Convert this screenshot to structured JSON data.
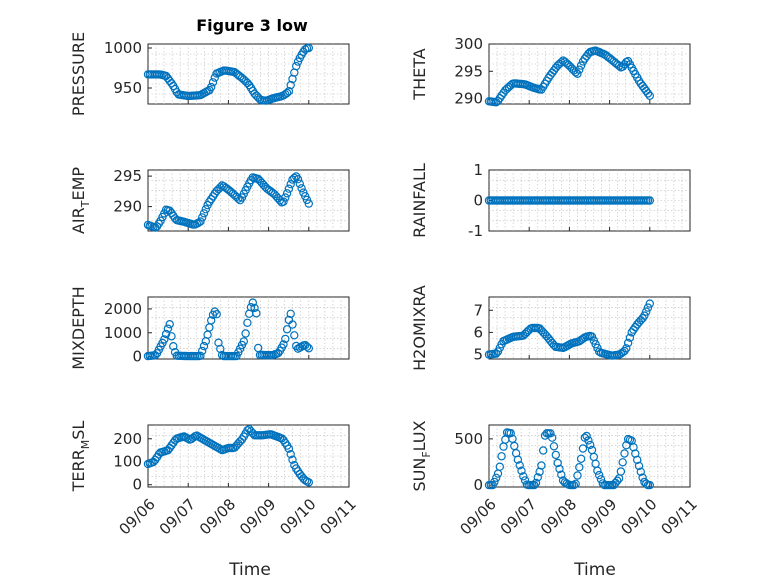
{
  "chart_data": {
    "type": "scatter",
    "title": "Figure 3 low",
    "xlabel": "Time",
    "x_tick_labels": [
      "09/06",
      "09/07",
      "09/08",
      "09/09",
      "09/10",
      "09/11"
    ],
    "xlim": [
      0,
      5
    ],
    "marker_color": "#0072bd",
    "marker": "open-circle",
    "grid": "on",
    "panels": [
      {
        "ylabel": "PRESSURE",
        "ylim": [
          930,
          1005
        ],
        "yticks": [
          950,
          1000
        ],
        "keys": [
          [
            0,
            967
          ],
          [
            0.3,
            967
          ],
          [
            0.45,
            965
          ],
          [
            0.6,
            955
          ],
          [
            0.75,
            942
          ],
          [
            1.0,
            940
          ],
          [
            1.3,
            941
          ],
          [
            1.55,
            948
          ],
          [
            1.7,
            968
          ],
          [
            1.9,
            972
          ],
          [
            2.15,
            970
          ],
          [
            2.35,
            962
          ],
          [
            2.5,
            955
          ],
          [
            2.65,
            943
          ],
          [
            2.8,
            935
          ],
          [
            2.95,
            934
          ],
          [
            3.1,
            937
          ],
          [
            3.35,
            940
          ],
          [
            3.5,
            945
          ],
          [
            3.6,
            962
          ],
          [
            3.7,
            980
          ],
          [
            3.8,
            990
          ],
          [
            3.9,
            998
          ],
          [
            3.97,
            1000
          ]
        ]
      },
      {
        "ylabel": "THETA",
        "ylim": [
          289,
          300
        ],
        "yticks": [
          290,
          295,
          300
        ],
        "keys": [
          [
            0,
            289.5
          ],
          [
            0.2,
            289.3
          ],
          [
            0.4,
            291.5
          ],
          [
            0.6,
            292.8
          ],
          [
            0.9,
            292.6
          ],
          [
            1.1,
            292.0
          ],
          [
            1.3,
            291.6
          ],
          [
            1.5,
            294
          ],
          [
            1.7,
            296
          ],
          [
            1.85,
            297
          ],
          [
            2.0,
            296
          ],
          [
            2.2,
            294.5
          ],
          [
            2.35,
            297
          ],
          [
            2.5,
            298.5
          ],
          [
            2.65,
            298.8
          ],
          [
            2.9,
            298
          ],
          [
            3.1,
            296.8
          ],
          [
            3.3,
            295.6
          ],
          [
            3.45,
            297
          ],
          [
            3.6,
            295
          ],
          [
            3.75,
            293
          ],
          [
            3.9,
            291.5
          ],
          [
            4.0,
            290.5
          ]
        ]
      },
      {
        "ylabel": "AIR_TEMP",
        "ylim": [
          286,
          296
        ],
        "yticks": [
          290,
          295
        ],
        "keys": [
          [
            0,
            287
          ],
          [
            0.2,
            286.5
          ],
          [
            0.3,
            287.5
          ],
          [
            0.45,
            289.5
          ],
          [
            0.55,
            289.3
          ],
          [
            0.7,
            287.8
          ],
          [
            0.9,
            287.5
          ],
          [
            1.15,
            287
          ],
          [
            1.3,
            287.5
          ],
          [
            1.5,
            290.5
          ],
          [
            1.7,
            292.5
          ],
          [
            1.85,
            293.5
          ],
          [
            2.05,
            292.5
          ],
          [
            2.3,
            291
          ],
          [
            2.45,
            293
          ],
          [
            2.6,
            294.8
          ],
          [
            2.75,
            294.5
          ],
          [
            2.95,
            293
          ],
          [
            3.15,
            292
          ],
          [
            3.35,
            290.5
          ],
          [
            3.45,
            292
          ],
          [
            3.6,
            294.5
          ],
          [
            3.7,
            295
          ],
          [
            3.85,
            292.5
          ],
          [
            4.0,
            290.5
          ]
        ]
      },
      {
        "ylabel": "RAINFALL",
        "ylim": [
          -1,
          1
        ],
        "yticks": [
          -1,
          0,
          1
        ],
        "keys": [
          [
            0,
            0
          ],
          [
            4.0,
            0
          ]
        ]
      },
      {
        "ylabel": "MIXDEPTH",
        "ylim": [
          -100,
          2500
        ],
        "yticks": [
          0,
          1000,
          2000
        ],
        "keys": [
          [
            0,
            20
          ],
          [
            0.2,
            60
          ],
          [
            0.4,
            700
          ],
          [
            0.5,
            1200
          ],
          [
            0.55,
            1400
          ],
          [
            0.6,
            600
          ],
          [
            0.7,
            40
          ],
          [
            1.0,
            20
          ],
          [
            1.3,
            20
          ],
          [
            1.45,
            700
          ],
          [
            1.6,
            1700
          ],
          [
            1.7,
            2000
          ],
          [
            1.75,
            600
          ],
          [
            1.85,
            20
          ],
          [
            2.2,
            20
          ],
          [
            2.4,
            700
          ],
          [
            2.5,
            1700
          ],
          [
            2.6,
            2300
          ],
          [
            2.7,
            1800
          ],
          [
            2.75,
            70
          ],
          [
            3.1,
            60
          ],
          [
            3.25,
            150
          ],
          [
            3.4,
            600
          ],
          [
            3.5,
            1500
          ],
          [
            3.55,
            1800
          ],
          [
            3.65,
            800
          ],
          [
            3.7,
            300
          ],
          [
            3.8,
            400
          ],
          [
            3.9,
            500
          ],
          [
            4.0,
            350
          ]
        ]
      },
      {
        "ylabel": "H2OMIXRA",
        "ylim": [
          4.8,
          7.6
        ],
        "yticks": [
          5,
          6,
          7
        ],
        "keys": [
          [
            0,
            5.0
          ],
          [
            0.2,
            5.05
          ],
          [
            0.35,
            5.6
          ],
          [
            0.6,
            5.8
          ],
          [
            0.85,
            5.85
          ],
          [
            1.05,
            6.2
          ],
          [
            1.25,
            6.2
          ],
          [
            1.45,
            5.8
          ],
          [
            1.65,
            5.35
          ],
          [
            1.85,
            5.3
          ],
          [
            2.05,
            5.5
          ],
          [
            2.25,
            5.6
          ],
          [
            2.4,
            5.8
          ],
          [
            2.55,
            5.85
          ],
          [
            2.75,
            5.1
          ],
          [
            3.05,
            4.95
          ],
          [
            3.25,
            5.0
          ],
          [
            3.4,
            5.2
          ],
          [
            3.55,
            6.0
          ],
          [
            3.7,
            6.4
          ],
          [
            3.85,
            6.7
          ],
          [
            4.0,
            7.3
          ]
        ]
      },
      {
        "ylabel": "TERR_MSL",
        "ylim": [
          -10,
          260
        ],
        "yticks": [
          0,
          100,
          200
        ],
        "keys": [
          [
            0,
            90
          ],
          [
            0.15,
            100
          ],
          [
            0.3,
            140
          ],
          [
            0.5,
            150
          ],
          [
            0.7,
            200
          ],
          [
            0.9,
            210
          ],
          [
            1.05,
            195
          ],
          [
            1.2,
            215
          ],
          [
            1.35,
            200
          ],
          [
            1.5,
            185
          ],
          [
            1.65,
            170
          ],
          [
            1.85,
            150
          ],
          [
            2.0,
            160
          ],
          [
            2.15,
            160
          ],
          [
            2.35,
            200
          ],
          [
            2.5,
            245
          ],
          [
            2.65,
            215
          ],
          [
            2.85,
            215
          ],
          [
            3.05,
            220
          ],
          [
            3.2,
            210
          ],
          [
            3.35,
            200
          ],
          [
            3.5,
            160
          ],
          [
            3.65,
            80
          ],
          [
            3.8,
            40
          ],
          [
            3.9,
            20
          ],
          [
            4.0,
            10
          ]
        ]
      },
      {
        "ylabel": "SUN_FLUX",
        "ylim": [
          -20,
          650
        ],
        "yticks": [
          0,
          500
        ],
        "keys": [
          [
            0,
            0
          ],
          [
            0.1,
            0
          ],
          [
            0.25,
            150
          ],
          [
            0.35,
            400
          ],
          [
            0.45,
            570
          ],
          [
            0.55,
            560
          ],
          [
            0.7,
            300
          ],
          [
            0.85,
            100
          ],
          [
            0.95,
            0
          ],
          [
            1.15,
            0
          ],
          [
            1.3,
            200
          ],
          [
            1.4,
            560
          ],
          [
            1.55,
            560
          ],
          [
            1.7,
            250
          ],
          [
            1.85,
            40
          ],
          [
            2.0,
            0
          ],
          [
            2.15,
            0
          ],
          [
            2.3,
            300
          ],
          [
            2.4,
            560
          ],
          [
            2.55,
            400
          ],
          [
            2.7,
            150
          ],
          [
            2.85,
            0
          ],
          [
            3.1,
            0
          ],
          [
            3.25,
            80
          ],
          [
            3.35,
            300
          ],
          [
            3.45,
            500
          ],
          [
            3.55,
            480
          ],
          [
            3.7,
            250
          ],
          [
            3.85,
            40
          ],
          [
            3.95,
            0
          ],
          [
            4.0,
            0
          ]
        ]
      }
    ]
  }
}
